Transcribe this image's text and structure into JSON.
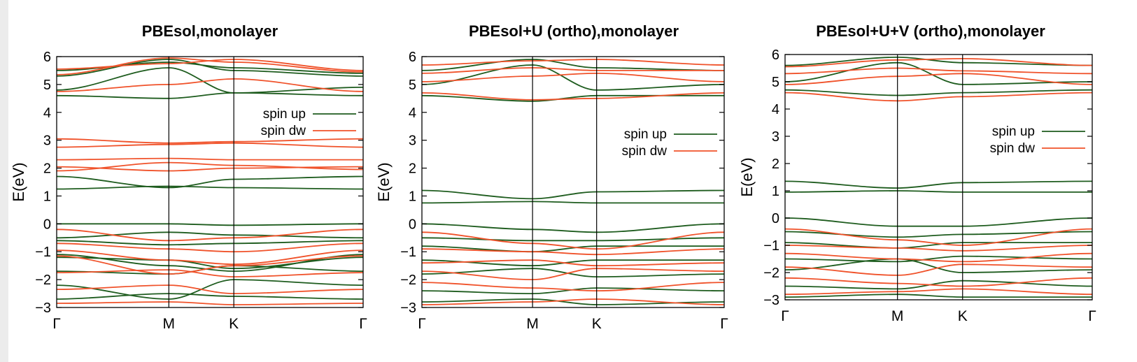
{
  "colors": {
    "spin_up": "#1e5c1e",
    "spin_dw": "#f0522a",
    "frame": "#000000",
    "background": "#ffffff"
  },
  "chart_data": [
    {
      "type": "line",
      "title": "PBEsol,monolayer",
      "ylabel": "E(eV)",
      "xlabel": "",
      "ylim": [
        -3,
        6
      ],
      "yticks": [
        -3,
        -2,
        -1,
        0,
        1,
        2,
        3,
        4,
        5,
        6
      ],
      "ytick_labels": [
        "−3",
        "−2",
        "−1",
        "0",
        "1",
        "2",
        "3",
        "4",
        "5",
        "6"
      ],
      "kpoint_labels": [
        "Γ",
        "M",
        "K",
        "Γ"
      ],
      "kpoint_positions": [
        0,
        0.366,
        0.578,
        1
      ],
      "grid": false,
      "legend": {
        "placement": "right",
        "entries": [
          "spin up",
          "spin dw"
        ]
      },
      "series": [
        {
          "name": "spin up",
          "values_at_kpoints_eV": [
            [
              4.6,
              4.5,
              4.7,
              4.6
            ],
            [
              4.8,
              5.6,
              4.7,
              4.9
            ],
            [
              5.3,
              5.9,
              5.5,
              5.3
            ],
            [
              5.5,
              5.8,
              5.6,
              5.4
            ],
            [
              1.25,
              1.35,
              1.3,
              1.25
            ],
            [
              1.7,
              1.3,
              1.6,
              1.7
            ],
            [
              0.0,
              0.0,
              -0.05,
              0.0
            ],
            [
              -0.5,
              -0.3,
              -0.4,
              -0.5
            ],
            [
              -0.6,
              -0.75,
              -0.7,
              -0.6
            ],
            [
              -1.1,
              -1.5,
              -1.7,
              -1.1
            ],
            [
              -1.2,
              -1.3,
              -1.6,
              -1.2
            ],
            [
              -1.7,
              -1.8,
              -1.5,
              -1.7
            ],
            [
              -2.2,
              -2.7,
              -2.0,
              -2.2
            ],
            [
              -2.7,
              -2.5,
              -2.6,
              -2.7
            ]
          ]
        },
        {
          "name": "spin dw",
          "values_at_kpoints_eV": [
            [
              4.75,
              5.0,
              5.2,
              4.75
            ],
            [
              5.35,
              5.95,
              5.8,
              5.45
            ],
            [
              5.55,
              5.75,
              5.9,
              5.5
            ],
            [
              1.9,
              2.2,
              2.1,
              1.95
            ],
            [
              2.05,
              1.9,
              2.0,
              2.05
            ],
            [
              2.3,
              2.35,
              2.3,
              2.3
            ],
            [
              2.75,
              2.85,
              2.9,
              2.75
            ],
            [
              3.05,
              2.9,
              2.95,
              3.05
            ],
            [
              -0.2,
              -0.6,
              -0.5,
              -0.2
            ],
            [
              -0.7,
              -0.9,
              -1.0,
              -0.7
            ],
            [
              -0.95,
              -1.3,
              -1.45,
              -0.95
            ],
            [
              -1.15,
              -1.8,
              -1.5,
              -1.15
            ],
            [
              -1.75,
              -1.65,
              -1.9,
              -1.75
            ],
            [
              -2.35,
              -2.2,
              -2.5,
              -2.35
            ],
            [
              -2.85,
              -2.8,
              -2.9,
              -2.85
            ]
          ]
        }
      ]
    },
    {
      "type": "line",
      "title": "PBEsol+U (ortho),monolayer",
      "ylabel": "E(eV)",
      "xlabel": "",
      "ylim": [
        -3,
        6
      ],
      "yticks": [
        -3,
        -2,
        -1,
        0,
        1,
        2,
        3,
        4,
        5,
        6
      ],
      "ytick_labels": [
        "−3",
        "−2",
        "−1",
        "0",
        "1",
        "2",
        "3",
        "4",
        "5",
        "6"
      ],
      "kpoint_labels": [
        "Γ",
        "M",
        "K",
        "Γ"
      ],
      "kpoint_positions": [
        0,
        0.366,
        0.578,
        1
      ],
      "grid": false,
      "legend": {
        "placement": "right",
        "entries": [
          "spin up",
          "spin dw"
        ]
      },
      "series": [
        {
          "name": "spin up",
          "values_at_kpoints_eV": [
            [
              4.6,
              4.4,
              4.6,
              4.6
            ],
            [
              5.0,
              5.7,
              4.8,
              5.0
            ],
            [
              5.5,
              5.9,
              5.6,
              5.5
            ],
            [
              0.75,
              0.8,
              0.75,
              0.75
            ],
            [
              1.2,
              0.9,
              1.15,
              1.2
            ],
            [
              0.0,
              -0.2,
              -0.3,
              0.0
            ],
            [
              -0.5,
              -0.6,
              -0.6,
              -0.5
            ],
            [
              -0.8,
              -1.0,
              -0.8,
              -0.8
            ],
            [
              -1.3,
              -1.5,
              -1.3,
              -1.3
            ],
            [
              -1.8,
              -1.6,
              -1.9,
              -1.8
            ],
            [
              -2.4,
              -2.5,
              -2.3,
              -2.4
            ],
            [
              -2.8,
              -2.7,
              -2.9,
              -2.8
            ]
          ]
        },
        {
          "name": "spin dw",
          "values_at_kpoints_eV": [
            [
              4.7,
              4.45,
              4.5,
              4.7
            ],
            [
              5.1,
              5.3,
              5.4,
              5.1
            ],
            [
              5.4,
              5.6,
              5.5,
              5.5
            ],
            [
              5.7,
              5.85,
              5.9,
              5.7
            ],
            [
              -0.3,
              -0.7,
              -0.9,
              -0.3
            ],
            [
              -0.9,
              -1.0,
              -1.1,
              -0.9
            ],
            [
              -1.4,
              -1.3,
              -1.5,
              -1.4
            ],
            [
              -1.7,
              -2.0,
              -1.6,
              -1.7
            ],
            [
              -2.1,
              -2.3,
              -2.4,
              -2.1
            ],
            [
              -2.9,
              -2.8,
              -2.7,
              -2.9
            ]
          ]
        }
      ]
    },
    {
      "type": "line",
      "title": "PBEsol+U+V (ortho),monolayer",
      "ylabel": "E(eV)",
      "xlabel": "",
      "ylim": [
        -3,
        6
      ],
      "yticks": [
        -3,
        -2,
        -1,
        0,
        1,
        2,
        3,
        4,
        5,
        6
      ],
      "ytick_labels": [
        "−3",
        "−2",
        "−1",
        "0",
        "1",
        "2",
        "3",
        "4",
        "5",
        "6"
      ],
      "kpoint_labels": [
        "Γ",
        "M",
        "K",
        "Γ"
      ],
      "kpoint_positions": [
        0,
        0.366,
        0.578,
        1
      ],
      "grid": false,
      "legend": {
        "placement": "right",
        "entries": [
          "spin up",
          "spin dw"
        ]
      },
      "series": [
        {
          "name": "spin up",
          "values_at_kpoints_eV": [
            [
              4.7,
              4.5,
              4.6,
              4.7
            ],
            [
              5.0,
              5.7,
              4.9,
              5.0
            ],
            [
              5.6,
              5.9,
              5.7,
              5.6
            ],
            [
              0.95,
              1.0,
              0.95,
              0.95
            ],
            [
              1.35,
              1.1,
              1.3,
              1.35
            ],
            [
              0.0,
              -0.3,
              -0.3,
              0.0
            ],
            [
              -0.5,
              -0.7,
              -0.6,
              -0.5
            ],
            [
              -0.9,
              -1.1,
              -0.9,
              -0.9
            ],
            [
              -1.5,
              -1.6,
              -1.4,
              -1.5
            ],
            [
              -1.9,
              -1.5,
              -2.0,
              -1.9
            ],
            [
              -2.5,
              -2.6,
              -2.3,
              -2.5
            ],
            [
              -2.9,
              -2.8,
              -2.9,
              -2.9
            ]
          ]
        },
        {
          "name": "spin dw",
          "values_at_kpoints_eV": [
            [
              4.6,
              4.3,
              4.45,
              4.6
            ],
            [
              4.9,
              5.2,
              5.3,
              4.9
            ],
            [
              5.3,
              5.5,
              5.4,
              5.3
            ],
            [
              5.55,
              5.8,
              5.85,
              5.6
            ],
            [
              -0.4,
              -0.8,
              -1.0,
              -0.4
            ],
            [
              -1.0,
              -1.1,
              -1.2,
              -1.0
            ],
            [
              -1.3,
              -1.5,
              -1.6,
              -1.3
            ],
            [
              -1.8,
              -2.1,
              -1.7,
              -1.8
            ],
            [
              -2.2,
              -2.4,
              -2.5,
              -2.2
            ],
            [
              -2.8,
              -2.7,
              -2.6,
              -2.8
            ]
          ]
        }
      ]
    }
  ]
}
